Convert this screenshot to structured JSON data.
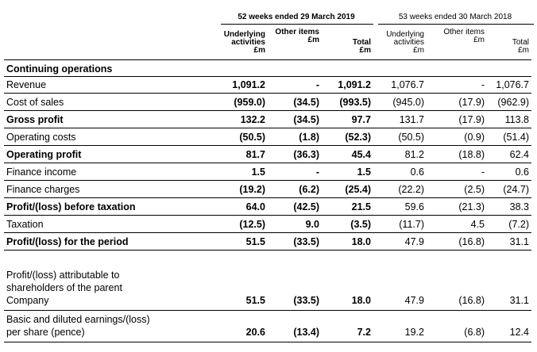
{
  "periods": {
    "current": "52 weeks ended 29 March 2019",
    "prior": "53 weeks ended 30 March 2018"
  },
  "column_headers": [
    "Underlying\nactivities\n£m",
    "Other items\n£m",
    "Total\n£m",
    "Underlying\nactivities\n£m",
    "Other items\n£m",
    "Total\n£m"
  ],
  "section_title": "Continuing operations",
  "rows": [
    {
      "label": "Revenue",
      "bold": false,
      "values": [
        "1,091.2",
        "-",
        "1,091.2",
        "1,076.7",
        "-",
        "1,076.7"
      ]
    },
    {
      "label": "Cost of sales",
      "bold": false,
      "values": [
        "(959.0)",
        "(34.5)",
        "(993.5)",
        "(945.0)",
        "(17.9)",
        "(962.9)"
      ]
    },
    {
      "label": "Gross profit",
      "bold": true,
      "values": [
        "132.2",
        "(34.5)",
        "97.7",
        "131.7",
        "(17.9)",
        "113.8"
      ]
    },
    {
      "label": "Operating costs",
      "bold": false,
      "values": [
        "(50.5)",
        "(1.8)",
        "(52.3)",
        "(50.5)",
        "(0.9)",
        "(51.4)"
      ]
    },
    {
      "label": "Operating profit",
      "bold": true,
      "values": [
        "81.7",
        "(36.3)",
        "45.4",
        "81.2",
        "(18.8)",
        "62.4"
      ]
    },
    {
      "label": "Finance income",
      "bold": false,
      "values": [
        "1.5",
        "-",
        "1.5",
        "0.6",
        "-",
        "0.6"
      ]
    },
    {
      "label": "Finance charges",
      "bold": false,
      "values": [
        "(19.2)",
        "(6.2)",
        "(25.4)",
        "(22.2)",
        "(2.5)",
        "(24.7)"
      ]
    },
    {
      "label": "Profit/(loss) before taxation",
      "bold": true,
      "values": [
        "64.0",
        "(42.5)",
        "21.5",
        "59.6",
        "(21.3)",
        "38.3"
      ]
    },
    {
      "label": "Taxation",
      "bold": false,
      "values": [
        "(12.5)",
        "9.0",
        "(3.5)",
        "(11.7)",
        "4.5",
        "(7.2)"
      ]
    },
    {
      "label": "Profit/(loss) for the period",
      "bold": true,
      "values": [
        "51.5",
        "(33.5)",
        "18.0",
        "47.9",
        "(16.8)",
        "31.1"
      ]
    },
    {
      "label": "Profit/(loss) attributable to\nshareholders of the parent\nCompany",
      "bold": false,
      "values": [
        "51.5",
        "(33.5)",
        "18.0",
        "47.9",
        "(16.8)",
        "31.1"
      ]
    },
    {
      "label": "Basic and diluted earnings/(loss)\nper share (pence)",
      "bold": false,
      "values": [
        "20.6",
        "(13.4)",
        "7.2",
        "19.2",
        "(6.8)",
        "12.4"
      ]
    }
  ]
}
